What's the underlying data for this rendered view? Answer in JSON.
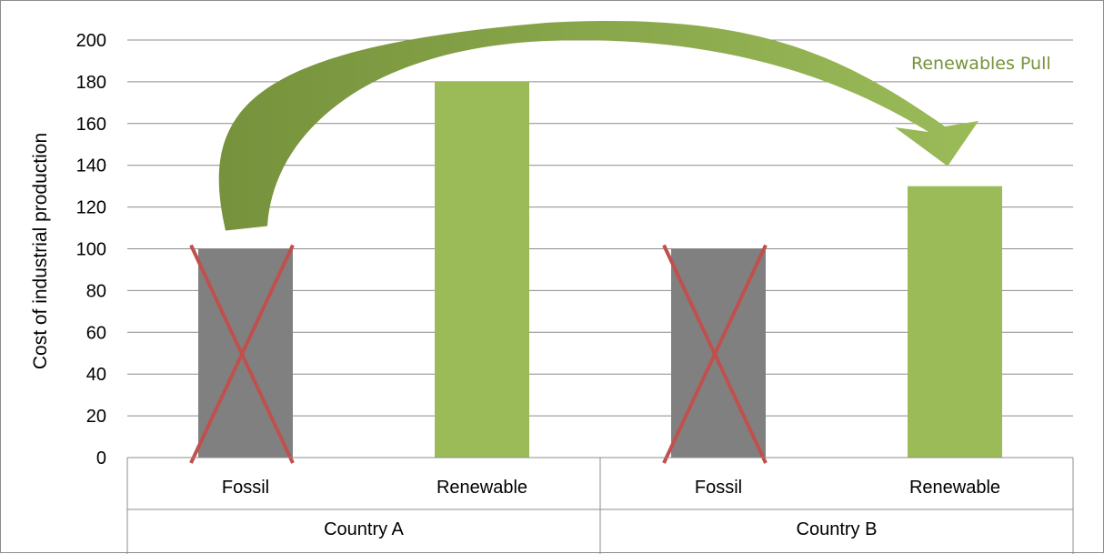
{
  "chart_data": {
    "type": "bar",
    "title": "",
    "xlabel": "",
    "ylabel": "Cost of industrial production",
    "ylim": [
      0,
      200
    ],
    "yticks": [
      0,
      20,
      40,
      60,
      80,
      100,
      120,
      140,
      160,
      180,
      200
    ],
    "grid": true,
    "groups": [
      {
        "label": "Country A",
        "bars": [
          {
            "category": "Fossil",
            "value": 100,
            "crossed_out": true
          },
          {
            "category": "Renewable",
            "value": 180,
            "crossed_out": false
          }
        ]
      },
      {
        "label": "Country B",
        "bars": [
          {
            "category": "Fossil",
            "value": 100,
            "crossed_out": true
          },
          {
            "category": "Renewable",
            "value": 130,
            "crossed_out": false
          }
        ]
      }
    ],
    "annotations": [
      {
        "type": "arrow",
        "text": "Renewables Pull",
        "from": "Country A Fossil",
        "to": "Country B Renewable"
      }
    ],
    "colors": {
      "Fossil": "#808080",
      "Renewable": "#9bbb59",
      "cross": "#c0504d",
      "arrow_start": "#76923c",
      "arrow_end": "#9bbb59",
      "annotation_text": "#76923c"
    }
  }
}
